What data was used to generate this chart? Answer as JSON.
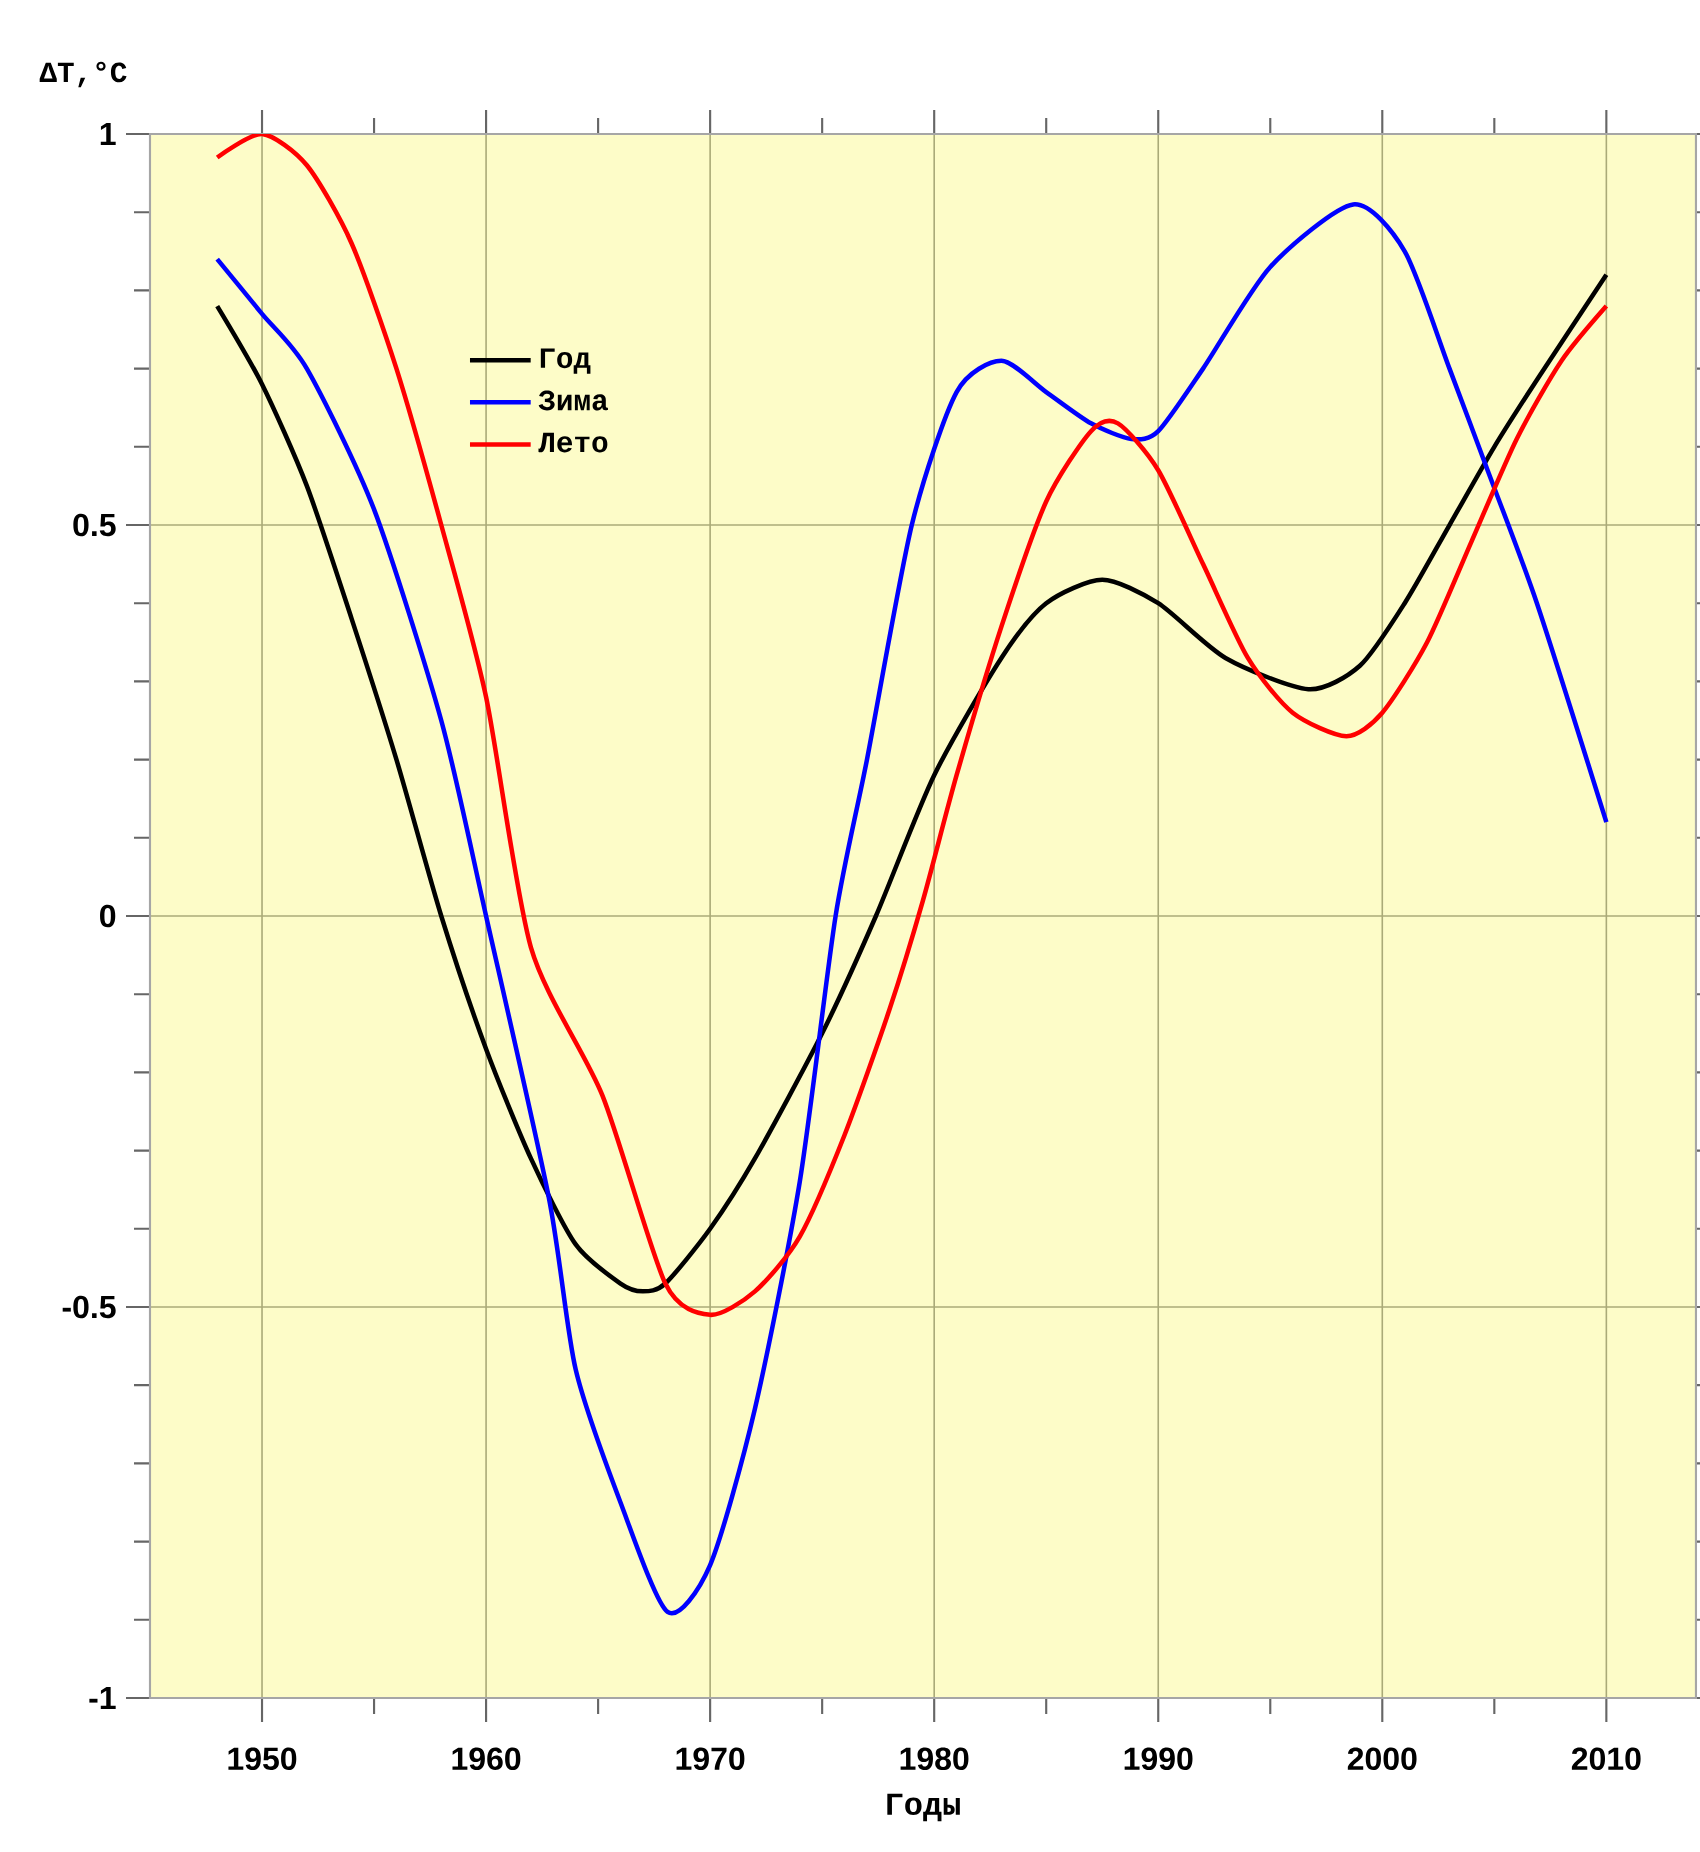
{
  "chart_data": {
    "type": "line",
    "xlabel": "Годы",
    "ylabel": "ΔT,°C",
    "xlim": [
      1945,
      2014
    ],
    "ylim": [
      -1,
      1
    ],
    "xticks": [
      1950,
      {
        "value": 1955,
        "label": null
      },
      1960,
      {
        "value": 1965,
        "label": null
      },
      1970,
      {
        "value": 1975,
        "label": null
      },
      1980,
      {
        "value": 1985,
        "label": null
      },
      1990,
      {
        "value": 1995,
        "label": null
      },
      2000,
      {
        "value": 2005,
        "label": null
      },
      2010
    ],
    "yticks": [
      -1,
      {
        "value": -0.9,
        "label": null
      },
      {
        "value": -0.8,
        "label": null
      },
      {
        "value": -0.7,
        "label": null
      },
      {
        "value": -0.6,
        "label": null
      },
      -0.5,
      {
        "value": -0.4,
        "label": null
      },
      {
        "value": -0.3,
        "label": null
      },
      {
        "value": -0.2,
        "label": null
      },
      {
        "value": -0.1,
        "label": null
      },
      0,
      {
        "value": 0.1,
        "label": null
      },
      {
        "value": 0.2,
        "label": null
      },
      {
        "value": 0.3,
        "label": null
      },
      {
        "value": 0.4,
        "label": null
      },
      0.5,
      {
        "value": 0.6,
        "label": null
      },
      {
        "value": 0.7,
        "label": null
      },
      {
        "value": 0.8,
        "label": null
      },
      {
        "value": 0.9,
        "label": null
      },
      1
    ],
    "grid": true,
    "legend": "top left",
    "marker": "none",
    "line_style": "solid",
    "series": [
      {
        "name": "Год",
        "color": "#000000",
        "x": [
          1948,
          1950,
          1952,
          1954,
          1956,
          1958,
          1960,
          1962,
          1964,
          1966,
          1967,
          1968,
          1970,
          1972,
          1975,
          1977.4,
          1980,
          1983,
          1985,
          1987.5,
          1990,
          1993,
          1996.7,
          1999,
          2001,
          2003,
          2005,
          2007,
          2010
        ],
        "values": [
          0.78,
          0.68,
          0.55,
          0.38,
          0.2,
          0.0,
          -0.17,
          -0.31,
          -0.42,
          -0.47,
          -0.48,
          -0.47,
          -0.4,
          -0.31,
          -0.15,
          0.0,
          0.18,
          0.33,
          0.4,
          0.43,
          0.4,
          0.33,
          0.29,
          0.32,
          0.4,
          0.5,
          0.6,
          0.69,
          0.82
        ]
      },
      {
        "name": "Зима",
        "color": "#0000ff",
        "x": [
          1948,
          1950,
          1952,
          1955,
          1958,
          1960,
          1962.8,
          1964,
          1966,
          1968.1,
          1970,
          1972,
          1974,
          1975.6,
          1977,
          1979,
          1981,
          1983,
          1985,
          1987,
          1988.8,
          1990,
          1992,
          1995,
          1998.7,
          2001,
          2003,
          2004.7,
          2006.9,
          2010
        ],
        "values": [
          0.84,
          0.77,
          0.7,
          0.52,
          0.25,
          0.0,
          -0.36,
          -0.58,
          -0.75,
          -0.89,
          -0.83,
          -0.63,
          -0.34,
          0.0,
          0.2,
          0.5,
          0.67,
          0.71,
          0.67,
          0.63,
          0.61,
          0.62,
          0.7,
          0.83,
          0.91,
          0.85,
          0.7,
          0.57,
          0.4,
          0.12
        ]
      },
      {
        "name": "Лето",
        "color": "#ff0000",
        "x": [
          1948,
          1950,
          1952,
          1954,
          1956,
          1958,
          1960,
          1962,
          1965.2,
          1968,
          1970,
          1972,
          1974,
          1976,
          1978,
          1979.5,
          1981,
          1983,
          1985,
          1987,
          1988.2,
          1990,
          1992,
          1994,
          1996,
          1998.4,
          2000,
          2002,
          2004,
          2006,
          2008,
          2010
        ],
        "values": [
          0.97,
          1.0,
          0.96,
          0.86,
          0.7,
          0.5,
          0.28,
          -0.04,
          -0.23,
          -0.47,
          -0.51,
          -0.48,
          -0.41,
          -0.28,
          -0.12,
          0.02,
          0.18,
          0.37,
          0.53,
          0.62,
          0.63,
          0.57,
          0.45,
          0.33,
          0.26,
          0.23,
          0.26,
          0.35,
          0.48,
          0.61,
          0.71,
          0.78
        ]
      }
    ]
  }
}
